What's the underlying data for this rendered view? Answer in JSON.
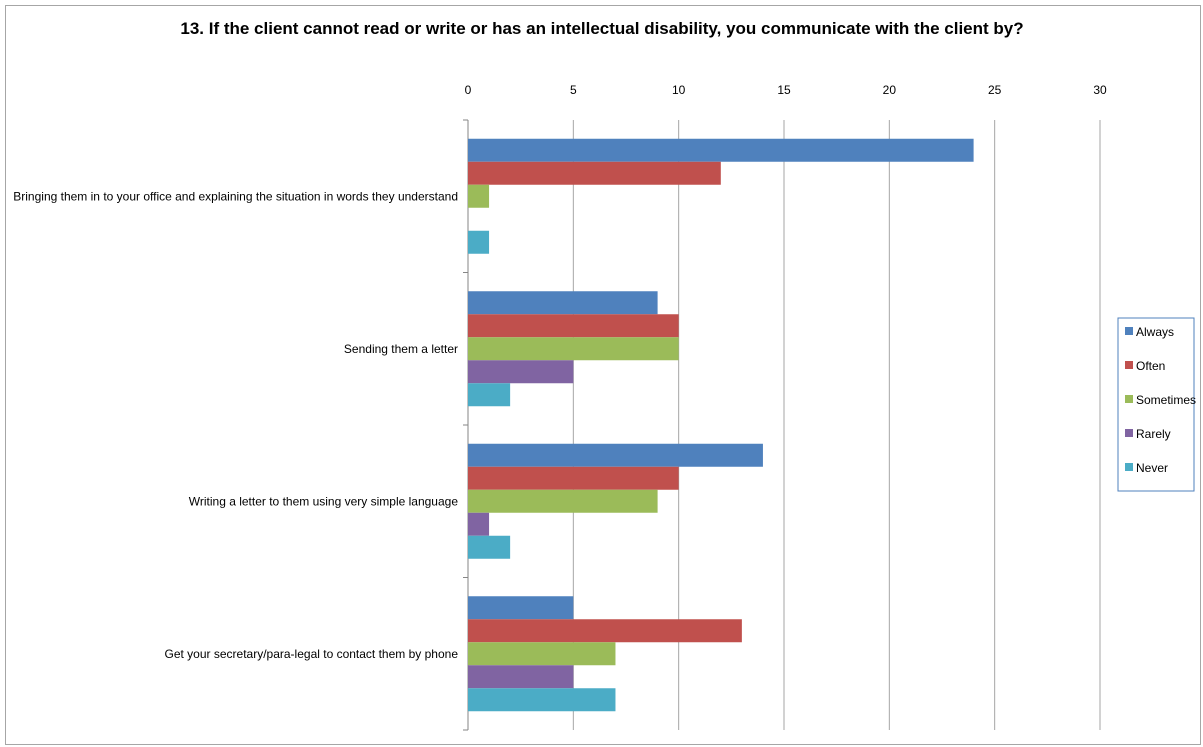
{
  "chart_data": {
    "type": "bar",
    "orientation": "horizontal",
    "title": "13. If the client cannot read or write or has an intellectual disability, you communicate with the client by?",
    "categories": [
      "Bringing them in to your office and explaining the situation  in words they understand",
      "Sending them a letter",
      "Writing a letter to them using very simple language",
      "Get your secretary/para-legal to contact them by phone"
    ],
    "series": [
      {
        "name": "Always",
        "color": "#4f81bd",
        "values": [
          24,
          9,
          14,
          5
        ]
      },
      {
        "name": "Often",
        "color": "#c0504d",
        "values": [
          12,
          10,
          10,
          13
        ]
      },
      {
        "name": "Sometimes",
        "color": "#9bbb59",
        "values": [
          1,
          10,
          9,
          7
        ]
      },
      {
        "name": "Rarely",
        "color": "#8064a2",
        "values": [
          0,
          5,
          1,
          5
        ]
      },
      {
        "name": "Never",
        "color": "#4bacc6",
        "values": [
          1,
          2,
          2,
          7
        ]
      }
    ],
    "xlim": [
      0,
      30
    ],
    "xticks": [
      0,
      5,
      10,
      15,
      20,
      25,
      30
    ],
    "xaxis_position": "top",
    "grid": true,
    "legend": "right"
  }
}
